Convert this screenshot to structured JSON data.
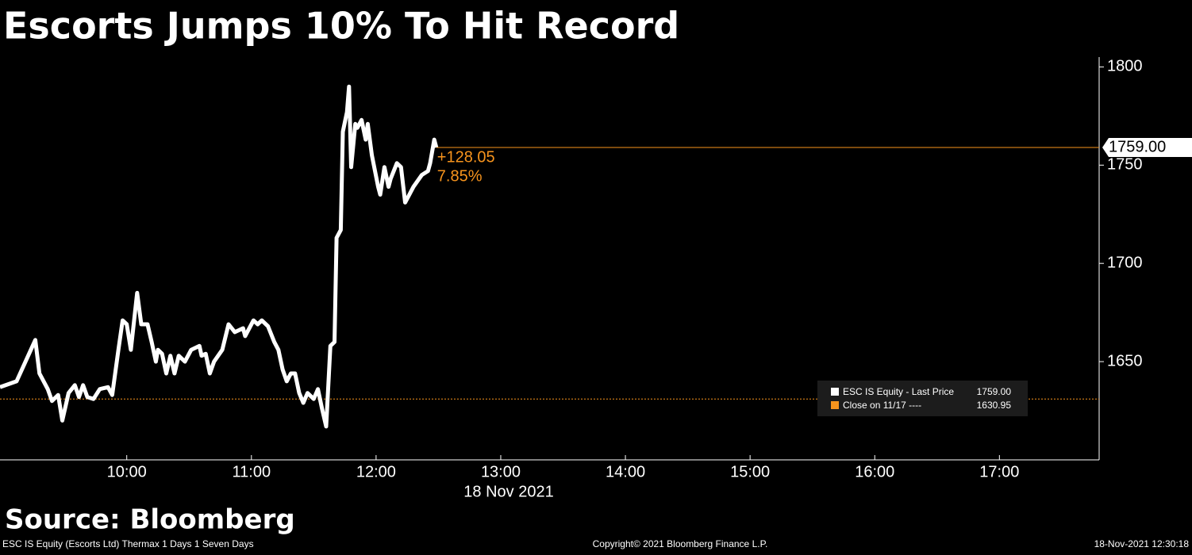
{
  "chart_data": {
    "type": "line",
    "title": "Escorts Jumps 10% To Hit Record",
    "source": "Source: Bloomberg",
    "x_label": "18 Nov 2021",
    "footer_left": "ESC IS Equity (Escorts Ltd) Thermax 1 Days 1 Seven Days",
    "footer_center": "Copyright© 2021 Bloomberg Finance L.P.",
    "footer_right": "18-Nov-2021 12:30:18",
    "x": [
      "08:59",
      "09:07",
      "09:16",
      "09:18",
      "09:22",
      "09:24",
      "09:27",
      "09:29",
      "09:32",
      "09:35",
      "09:37",
      "09:39",
      "09:41",
      "09:44",
      "09:47",
      "09:51",
      "09:53",
      "09:56",
      "09:58",
      "10:00",
      "10:02",
      "10:05",
      "10:07",
      "10:10",
      "10:12",
      "10:14",
      "10:15",
      "10:17",
      "10:19",
      "10:21",
      "10:23",
      "10:25",
      "10:28",
      "10:31",
      "10:35",
      "10:36",
      "10:38",
      "10:40",
      "10:42",
      "10:46",
      "10:49",
      "10:52",
      "10:56",
      "10:57",
      "11:01",
      "11:03",
      "11:05",
      "11:08",
      "11:11",
      "11:13",
      "11:15",
      "11:17",
      "11:19",
      "11:21",
      "11:23",
      "11:25",
      "11:27",
      "11:30",
      "11:32",
      "11:34",
      "11:36",
      "11:38",
      "11:40",
      "11:41",
      "11:43",
      "11:44",
      "11:46",
      "11:47",
      "11:48",
      "11:50",
      "11:51",
      "11:53",
      "11:55",
      "11:56",
      "11:58",
      "12:01",
      "12:02",
      "12:04",
      "12:06",
      "12:07",
      "12:10",
      "12:12",
      "12:14",
      "12:16",
      "12:18",
      "12:22",
      "12:25",
      "12:26",
      "12:28",
      "12:29"
    ],
    "series": [
      {
        "name": "ESC IS Equity - Last Price",
        "color": "#ffffff",
        "values": [
          1637,
          1640,
          1661,
          1644,
          1636,
          1630,
          1633,
          1620,
          1634,
          1638,
          1632,
          1638,
          1632,
          1631,
          1636,
          1637,
          1633,
          1656,
          1671,
          1669,
          1656,
          1685,
          1669,
          1669,
          1660,
          1650,
          1656,
          1654,
          1644,
          1653,
          1644,
          1653,
          1650,
          1656,
          1658,
          1653,
          1654,
          1644,
          1650,
          1656,
          1669,
          1665,
          1667,
          1663,
          1671,
          1669,
          1671,
          1668,
          1660,
          1656,
          1646,
          1640,
          1644,
          1644,
          1634,
          1629,
          1634,
          1631,
          1636,
          1626,
          1617,
          1658,
          1660,
          1713,
          1717,
          1767,
          1777,
          1790,
          1749,
          1771,
          1769,
          1773,
          1763,
          1771,
          1755,
          1739,
          1735,
          1749,
          1739,
          1743,
          1751,
          1749,
          1731,
          1735,
          1739,
          1745,
          1747,
          1751,
          1763,
          1759
        ]
      }
    ],
    "last_price": {
      "value": 1759,
      "label": "1759.00"
    },
    "change": {
      "value": 128.05,
      "label": "+128.05"
    },
    "change_pct": {
      "value": 7.85,
      "label": "7.85%"
    },
    "close": {
      "name": "Close on 11/17 ----",
      "value": 1630.95,
      "color": "#f7941d"
    },
    "annotation_color": "#f7941d",
    "xlim": [
      "08:59",
      "17:48"
    ],
    "xticks": [
      "10:00",
      "11:00",
      "12:00",
      "13:00",
      "14:00",
      "15:00",
      "16:00",
      "17:00"
    ],
    "ylim": [
      1600,
      1805
    ],
    "yticks": [
      1650,
      1700,
      1750,
      1800
    ],
    "grid": false
  }
}
